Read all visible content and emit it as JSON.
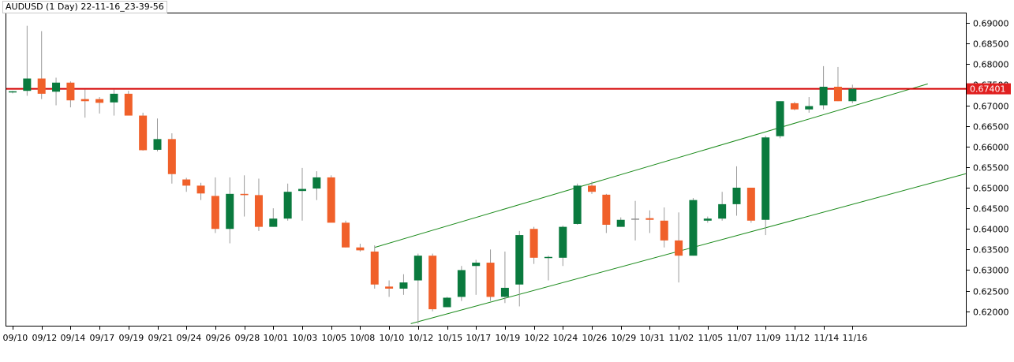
{
  "chart_data": {
    "type": "candlestick",
    "title": "AUDUSD (1 Day) 22-11-16_23-39-56",
    "ylim": [
      0.6165,
      0.6923
    ],
    "yticks": [
      0.62,
      0.625,
      0.63,
      0.635,
      0.64,
      0.645,
      0.65,
      0.655,
      0.66,
      0.665,
      0.67,
      0.675,
      0.68,
      0.685,
      0.69
    ],
    "ytick_labels": [
      "0.62000",
      "0.62500",
      "0.63000",
      "0.63500",
      "0.64000",
      "0.64500",
      "0.65000",
      "0.65500",
      "0.66000",
      "0.66500",
      "0.67000",
      "0.67500",
      "0.68000",
      "0.68500",
      "0.69000"
    ],
    "xtick_labels": [
      "09/10",
      "09/12",
      "09/14",
      "09/17",
      "09/19",
      "09/21",
      "09/24",
      "09/26",
      "09/28",
      "10/01",
      "10/03",
      "10/05",
      "10/08",
      "10/10",
      "10/12",
      "10/15",
      "10/17",
      "10/19",
      "10/22",
      "10/24",
      "10/26",
      "10/29",
      "10/31",
      "11/02",
      "11/05",
      "11/07",
      "11/09",
      "11/12",
      "11/14",
      "11/16"
    ],
    "current_price": 0.674,
    "current_price_label": "0.67401",
    "colors": {
      "bull": "#0a7a3e",
      "bear": "#f0602a",
      "doji": "#909090",
      "hline": "#d40000",
      "channel": "#1a8a1a",
      "axis": "#000000",
      "price_bg": "#e02020"
    },
    "candles": [
      {
        "o": 0.6732,
        "h": 0.6735,
        "l": 0.6729,
        "c": 0.6734
      },
      {
        "o": 0.6735,
        "h": 0.6893,
        "l": 0.6723,
        "c": 0.6765
      },
      {
        "o": 0.6765,
        "h": 0.688,
        "l": 0.6715,
        "c": 0.6728
      },
      {
        "o": 0.6733,
        "h": 0.6767,
        "l": 0.67,
        "c": 0.6755
      },
      {
        "o": 0.6755,
        "h": 0.6758,
        "l": 0.6695,
        "c": 0.6712
      },
      {
        "o": 0.6715,
        "h": 0.6738,
        "l": 0.667,
        "c": 0.671
      },
      {
        "o": 0.6715,
        "h": 0.672,
        "l": 0.668,
        "c": 0.6706
      },
      {
        "o": 0.6707,
        "h": 0.6738,
        "l": 0.6675,
        "c": 0.6728
      },
      {
        "o": 0.6728,
        "h": 0.6735,
        "l": 0.668,
        "c": 0.6675
      },
      {
        "o": 0.6675,
        "h": 0.6682,
        "l": 0.659,
        "c": 0.6591
      },
      {
        "o": 0.6592,
        "h": 0.6668,
        "l": 0.6588,
        "c": 0.6618
      },
      {
        "o": 0.6618,
        "h": 0.6632,
        "l": 0.651,
        "c": 0.6533
      },
      {
        "o": 0.652,
        "h": 0.6524,
        "l": 0.649,
        "c": 0.6505
      },
      {
        "o": 0.6505,
        "h": 0.6512,
        "l": 0.647,
        "c": 0.6486
      },
      {
        "o": 0.648,
        "h": 0.6525,
        "l": 0.639,
        "c": 0.64
      },
      {
        "o": 0.64,
        "h": 0.6525,
        "l": 0.6365,
        "c": 0.6485
      },
      {
        "o": 0.6485,
        "h": 0.653,
        "l": 0.643,
        "c": 0.6482
      },
      {
        "o": 0.6482,
        "h": 0.6522,
        "l": 0.6395,
        "c": 0.6405
      },
      {
        "o": 0.6405,
        "h": 0.645,
        "l": 0.6405,
        "c": 0.6425
      },
      {
        "o": 0.6425,
        "h": 0.651,
        "l": 0.642,
        "c": 0.649
      },
      {
        "o": 0.6492,
        "h": 0.6548,
        "l": 0.642,
        "c": 0.6497
      },
      {
        "o": 0.6498,
        "h": 0.654,
        "l": 0.647,
        "c": 0.6525
      },
      {
        "o": 0.6525,
        "h": 0.653,
        "l": 0.642,
        "c": 0.6415
      },
      {
        "o": 0.6415,
        "h": 0.642,
        "l": 0.6355,
        "c": 0.6355
      },
      {
        "o": 0.6355,
        "h": 0.6364,
        "l": 0.6345,
        "c": 0.6348
      },
      {
        "o": 0.6345,
        "h": 0.636,
        "l": 0.6255,
        "c": 0.6265
      },
      {
        "o": 0.626,
        "h": 0.6275,
        "l": 0.6235,
        "c": 0.6255
      },
      {
        "o": 0.6255,
        "h": 0.629,
        "l": 0.624,
        "c": 0.627
      },
      {
        "o": 0.6275,
        "h": 0.634,
        "l": 0.617,
        "c": 0.6335
      },
      {
        "o": 0.6335,
        "h": 0.634,
        "l": 0.62,
        "c": 0.6205
      },
      {
        "o": 0.621,
        "h": 0.6235,
        "l": 0.621,
        "c": 0.6233
      },
      {
        "o": 0.6235,
        "h": 0.631,
        "l": 0.6225,
        "c": 0.63
      },
      {
        "o": 0.631,
        "h": 0.6325,
        "l": 0.624,
        "c": 0.6318
      },
      {
        "o": 0.6318,
        "h": 0.635,
        "l": 0.6225,
        "c": 0.6235
      },
      {
        "o": 0.6235,
        "h": 0.6345,
        "l": 0.622,
        "c": 0.6257
      },
      {
        "o": 0.6265,
        "h": 0.6395,
        "l": 0.6212,
        "c": 0.6385
      },
      {
        "o": 0.64,
        "h": 0.6405,
        "l": 0.6315,
        "c": 0.633
      },
      {
        "o": 0.633,
        "h": 0.6335,
        "l": 0.6275,
        "c": 0.6332
      },
      {
        "o": 0.633,
        "h": 0.6408,
        "l": 0.631,
        "c": 0.6405
      },
      {
        "o": 0.6412,
        "h": 0.651,
        "l": 0.641,
        "c": 0.6505
      },
      {
        "o": 0.6505,
        "h": 0.6515,
        "l": 0.6485,
        "c": 0.649
      },
      {
        "o": 0.6483,
        "h": 0.6485,
        "l": 0.639,
        "c": 0.641
      },
      {
        "o": 0.6405,
        "h": 0.6428,
        "l": 0.6405,
        "c": 0.6422
      },
      {
        "o": 0.6425,
        "h": 0.6468,
        "l": 0.6372,
        "c": 0.6425
      },
      {
        "o": 0.6426,
        "h": 0.6445,
        "l": 0.639,
        "c": 0.6422
      },
      {
        "o": 0.642,
        "h": 0.6452,
        "l": 0.6355,
        "c": 0.6372
      },
      {
        "o": 0.6372,
        "h": 0.644,
        "l": 0.627,
        "c": 0.6335
      },
      {
        "o": 0.6335,
        "h": 0.6475,
        "l": 0.6335,
        "c": 0.647
      },
      {
        "o": 0.642,
        "h": 0.643,
        "l": 0.6415,
        "c": 0.6425
      },
      {
        "o": 0.6425,
        "h": 0.649,
        "l": 0.642,
        "c": 0.646
      },
      {
        "o": 0.646,
        "h": 0.6552,
        "l": 0.6432,
        "c": 0.65
      },
      {
        "o": 0.65,
        "h": 0.65,
        "l": 0.6415,
        "c": 0.642
      },
      {
        "o": 0.6422,
        "h": 0.6626,
        "l": 0.6385,
        "c": 0.6622
      },
      {
        "o": 0.6625,
        "h": 0.671,
        "l": 0.662,
        "c": 0.671
      },
      {
        "o": 0.6705,
        "h": 0.6708,
        "l": 0.6688,
        "c": 0.669
      },
      {
        "o": 0.669,
        "h": 0.672,
        "l": 0.6682,
        "c": 0.6698
      },
      {
        "o": 0.67,
        "h": 0.6795,
        "l": 0.669,
        "c": 0.6745
      },
      {
        "o": 0.6745,
        "h": 0.6793,
        "l": 0.671,
        "c": 0.671
      },
      {
        "o": 0.671,
        "h": 0.675,
        "l": 0.6705,
        "c": 0.674
      }
    ]
  }
}
